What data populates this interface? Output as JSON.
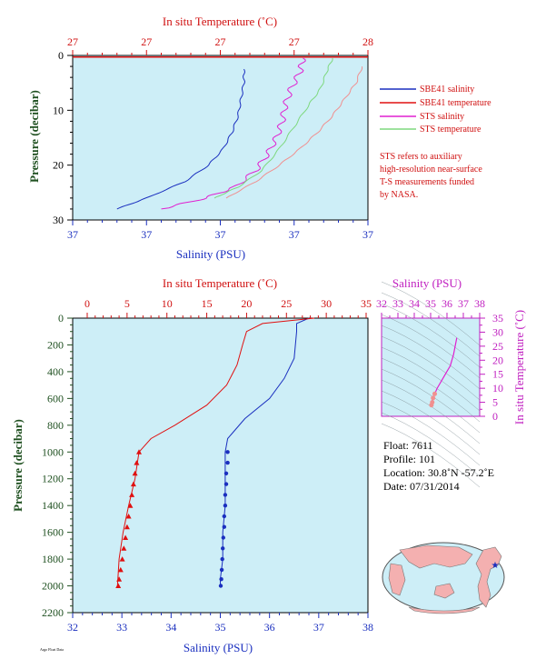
{
  "colors": {
    "plot_bg": "#cdeef7",
    "salinity": "#1a2fbf",
    "temperature": "#e01010",
    "sts_salinity": "#e020d0",
    "sts_temperature": "#7ed87e",
    "sts_temp_light": "#f09090",
    "pressure_axis": "#1f5020",
    "salinity_axis": "#1a2fbf",
    "temp_axis": "#d01010",
    "ts_axis": "#c020c0"
  },
  "top_panel": {
    "x_title_top": "In situ Temperature (˚C)",
    "x_ticks_top": [
      "27",
      "27",
      "27",
      "27",
      "28"
    ],
    "x_title_bottom": "Salinity (PSU)",
    "x_ticks_bottom": [
      "37",
      "37",
      "37",
      "37",
      "37"
    ],
    "y_title": "Pressure (decibar)",
    "y_ticks": [
      "0",
      "10",
      "20",
      "30"
    ]
  },
  "legend": {
    "items": [
      {
        "label": "SBE41 salinity",
        "color": "#1a2fbf"
      },
      {
        "label": "SBE41 temperature",
        "color": "#e01010"
      },
      {
        "label": "STS salinity",
        "color": "#e020d0"
      },
      {
        "label": "STS temperature",
        "color": "#7ed87e"
      }
    ],
    "note_lines": [
      "STS refers to auxiliary",
      "high-resolution near-surface",
      "T-S measurements funded",
      "by NASA."
    ]
  },
  "main_panel": {
    "x_title_top": "In situ Temperature (˚C)",
    "x_ticks_top": [
      "0",
      "5",
      "10",
      "15",
      "20",
      "25",
      "30",
      "35"
    ],
    "x_title_bottom": "Salinity (PSU)",
    "x_ticks_bottom": [
      "32",
      "33",
      "34",
      "35",
      "36",
      "37",
      "38"
    ],
    "y_title": "Pressure (decibar)",
    "y_ticks": [
      "0",
      "200",
      "400",
      "600",
      "800",
      "1000",
      "1200",
      "1400",
      "1600",
      "1800",
      "2000",
      "2200"
    ]
  },
  "ts_panel": {
    "x_title": "Salinity (PSU)",
    "x_ticks": [
      "32",
      "33",
      "34",
      "35",
      "36",
      "37",
      "38"
    ],
    "y_title": "In situ Temperature (˚C)",
    "y_ticks": [
      "0",
      "5",
      "10",
      "15",
      "20",
      "25",
      "30",
      "35"
    ]
  },
  "float_info": {
    "float": "Float:  7611",
    "profile": "Profile:  101",
    "location": "Location:  30.8˚N  -57.2˚E",
    "date": "Date:  07/31/2014"
  },
  "footer_text": "Argo Float Data",
  "chart_data": [
    {
      "type": "line",
      "title": "",
      "xlabel_top": "In situ Temperature (˚C)",
      "xlabel": "Salinity (PSU)",
      "ylabel": "Pressure (decibar)",
      "ylim": [
        30,
        0
      ],
      "series": [
        {
          "name": "SBE41 salinity",
          "x_norm": [
            0.58,
            0.58,
            0.57,
            0.56,
            0.54,
            0.51,
            0.46,
            0.38,
            0.25,
            0.15
          ],
          "y": [
            2.5,
            5,
            8,
            11,
            14,
            17,
            20,
            23,
            26,
            28
          ]
        },
        {
          "name": "SBE41 temperature",
          "x_norm": [
            0.0,
            1.0
          ],
          "y": [
            0.3,
            0.3
          ]
        },
        {
          "name": "STS salinity",
          "x_norm": [
            0.78,
            0.77,
            0.74,
            0.72,
            0.71,
            0.69,
            0.66,
            0.62,
            0.55,
            0.45,
            0.3
          ],
          "y": [
            0.5,
            3,
            6,
            9,
            12,
            15,
            18,
            21,
            24,
            26,
            28
          ]
        },
        {
          "name": "STS temperature",
          "x_norm": [
            0.88,
            0.86,
            0.84,
            0.8,
            0.75,
            0.7,
            0.64,
            0.56,
            0.48
          ],
          "y": [
            0.5,
            3,
            6,
            9,
            13,
            17,
            21,
            24,
            26
          ]
        },
        {
          "name": "",
          "x_norm": [
            0.98,
            0.96,
            0.92,
            0.88,
            0.83,
            0.77,
            0.7,
            0.62,
            0.52
          ],
          "y": [
            2,
            5,
            8,
            11,
            14,
            17,
            20,
            23,
            26
          ]
        }
      ]
    },
    {
      "type": "line",
      "title": "",
      "xlabel_top": "In situ Temperature (˚C)",
      "xlabel": "Salinity (PSU)",
      "ylabel": "Pressure (decibar)",
      "xlim_salinity": [
        32,
        38
      ],
      "xlim_temperature": [
        0,
        35
      ],
      "ylim": [
        2200,
        0
      ],
      "series": [
        {
          "name": "Salinity",
          "x": [
            36.8,
            36.55,
            36.55,
            36.5,
            36.3,
            36.0,
            35.5,
            35.15,
            35.1,
            35.1,
            35.1,
            35.05,
            35.05,
            35.0,
            35.0
          ],
          "y": [
            0,
            40,
            100,
            300,
            450,
            600,
            750,
            900,
            1000,
            1200,
            1400,
            1600,
            1800,
            1950,
            2000
          ]
        },
        {
          "name": "Temperature",
          "x": [
            28.5,
            22,
            20,
            19.5,
            18.8,
            17.5,
            15,
            11,
            8,
            6.5,
            6.0,
            5.2,
            4.5,
            4.0,
            3.8
          ],
          "y": [
            0,
            40,
            100,
            200,
            350,
            500,
            650,
            800,
            900,
            1000,
            1200,
            1400,
            1600,
            1800,
            2000
          ]
        },
        {
          "name": "",
          "points": "salinity",
          "x": [
            35.15,
            35.15,
            35.12,
            35.12,
            35.1,
            35.1,
            35.08,
            35.08,
            35.06,
            35.05,
            35.04,
            35.03,
            35.02,
            35.01
          ],
          "y": [
            1000,
            1080,
            1160,
            1240,
            1320,
            1400,
            1480,
            1560,
            1640,
            1720,
            1800,
            1880,
            1950,
            2000
          ]
        },
        {
          "name": "",
          "points": "temperature",
          "x": [
            6.5,
            6.2,
            6.0,
            5.8,
            5.6,
            5.4,
            5.2,
            5.0,
            4.8,
            4.6,
            4.4,
            4.2,
            4.0,
            3.9
          ],
          "y": [
            1000,
            1080,
            1160,
            1240,
            1320,
            1400,
            1480,
            1560,
            1640,
            1720,
            1800,
            1880,
            1950,
            2000
          ]
        }
      ]
    },
    {
      "type": "scatter",
      "title": "",
      "xlabel": "Salinity (PSU)",
      "ylabel": "In situ Temperature (˚C)",
      "xlim": [
        32,
        38
      ],
      "ylim": [
        0,
        35
      ],
      "series": [
        {
          "name": "",
          "x": [
            36.6,
            36.5,
            36.4,
            36.3,
            36.2,
            36.0,
            35.8,
            35.6,
            35.4,
            35.25,
            35.15,
            35.1,
            35.05
          ],
          "y": [
            28,
            25,
            22,
            20,
            18,
            16,
            14,
            12,
            10,
            8,
            6.5,
            5,
            4
          ]
        }
      ]
    }
  ]
}
